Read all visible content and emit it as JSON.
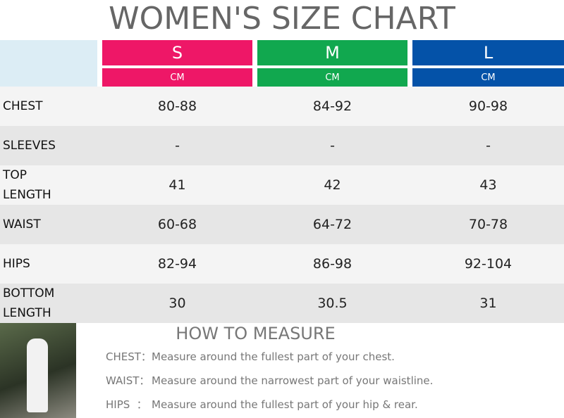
{
  "title": "WOMEN'S SIZE CHART",
  "table": {
    "sizes": [
      {
        "name": "S",
        "unit": "CM",
        "color": "#ee1767"
      },
      {
        "name": "M",
        "unit": "CM",
        "color": "#11a84f"
      },
      {
        "name": "L",
        "unit": "CM",
        "color": "#0452a8"
      }
    ],
    "rows": [
      {
        "label": "CHEST",
        "values": [
          "80-88",
          "84-92",
          "90-98"
        ]
      },
      {
        "label": "SLEEVES",
        "values": [
          "-",
          "-",
          "-"
        ]
      },
      {
        "label": "TOP LENGTH",
        "values": [
          "41",
          "42",
          "43"
        ]
      },
      {
        "label": "WAIST",
        "values": [
          "60-68",
          "64-72",
          "70-78"
        ]
      },
      {
        "label": "HIPS",
        "values": [
          "82-94",
          "86-98",
          "92-104"
        ]
      },
      {
        "label": "BOTTOM LENGTH",
        "values": [
          "30",
          "30.5",
          "31"
        ]
      }
    ]
  },
  "measure": {
    "title": "HOW TO MEASURE",
    "items": [
      {
        "label": "CHEST：",
        "text": "Measure around the fullest part of your chest."
      },
      {
        "label": "WAIST：",
        "text": "Measure around the narrowest part of your waistline."
      },
      {
        "label": "HIPS  ：",
        "text": "Measure around the fullest part of your hip & rear."
      }
    ]
  }
}
